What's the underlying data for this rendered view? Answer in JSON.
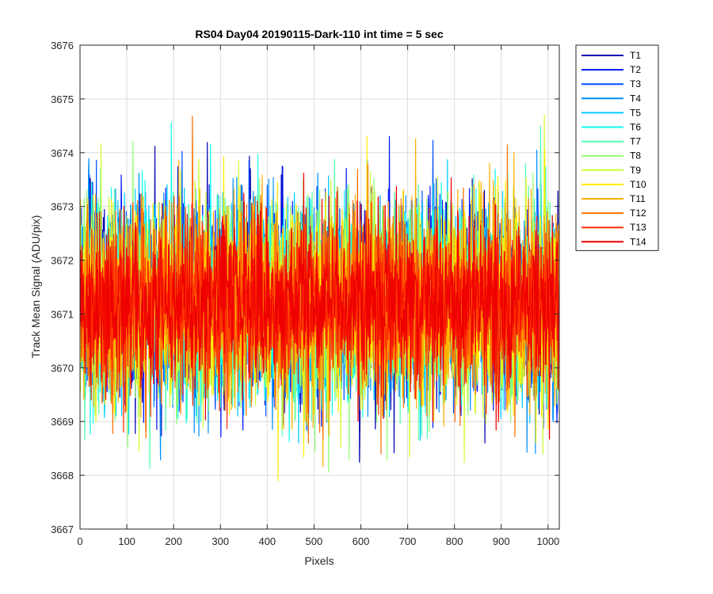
{
  "chart_data": {
    "type": "line",
    "title": "RS04 Day04 20190115-Dark-110 int time = 5 sec",
    "xlabel": "Pixels",
    "ylabel": "Track Mean Signal (ADU/pix)",
    "xlim": [
      0,
      1024
    ],
    "ylim": [
      3667,
      3676
    ],
    "xticks": [
      0,
      100,
      200,
      300,
      400,
      500,
      600,
      700,
      800,
      900,
      1000
    ],
    "yticks": [
      3667,
      3668,
      3669,
      3670,
      3671,
      3672,
      3673,
      3674,
      3675,
      3676
    ],
    "grid": true,
    "legend_position": "outside-right-top",
    "series_mean": 3671.2,
    "series_noise_std": 0.9,
    "series": [
      {
        "name": "T1",
        "color": "#0000b3"
      },
      {
        "name": "T2",
        "color": "#0014ff"
      },
      {
        "name": "T3",
        "color": "#0050ff"
      },
      {
        "name": "T4",
        "color": "#0090ff"
      },
      {
        "name": "T5",
        "color": "#00ccff"
      },
      {
        "name": "T6",
        "color": "#10ffef"
      },
      {
        "name": "T7",
        "color": "#50ffaf"
      },
      {
        "name": "T8",
        "color": "#8fff70"
      },
      {
        "name": "T9",
        "color": "#cfff30"
      },
      {
        "name": "T10",
        "color": "#ffee00"
      },
      {
        "name": "T11",
        "color": "#ffb000"
      },
      {
        "name": "T12",
        "color": "#ff7000"
      },
      {
        "name": "T13",
        "color": "#ff3000"
      },
      {
        "name": "T14",
        "color": "#ef0000"
      }
    ]
  }
}
